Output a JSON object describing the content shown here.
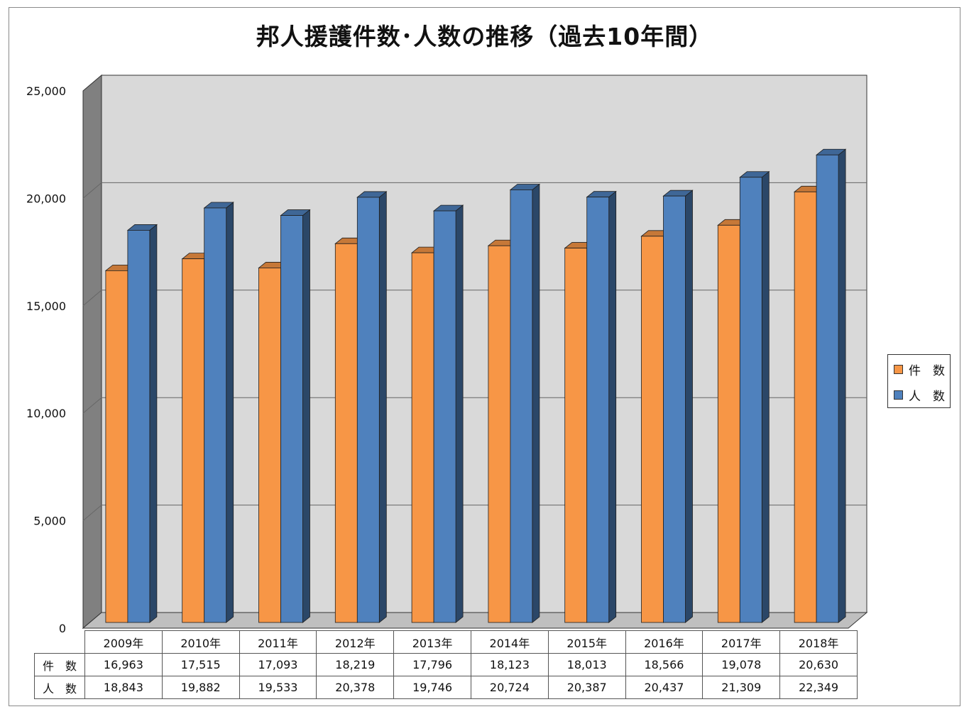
{
  "title": "邦人援護件数･人数の推移（過去10年間）",
  "colors": {
    "series1": "#f79646",
    "series2": "#4f81bd",
    "plot_back": "#d9d9d9",
    "plot_side": "#808080"
  },
  "chart_data": {
    "type": "bar",
    "categories": [
      "2009年",
      "2010年",
      "2011年",
      "2012年",
      "2013年",
      "2014年",
      "2015年",
      "2016年",
      "2017年",
      "2018年"
    ],
    "series": [
      {
        "name": "件　数",
        "values": [
          16963,
          17515,
          17093,
          18219,
          17796,
          18123,
          18013,
          18566,
          19078,
          20630
        ]
      },
      {
        "name": "人　数",
        "values": [
          18843,
          19882,
          19533,
          20378,
          19746,
          20724,
          20387,
          20437,
          21309,
          22349
        ]
      }
    ],
    "ylim": [
      0,
      25000
    ],
    "yticks": [
      "0",
      "5,000",
      "10,000",
      "15,000",
      "20,000",
      "25,000"
    ],
    "grid": true,
    "legend": "right",
    "table": {
      "row_labels": [
        "件　数",
        "人　数"
      ],
      "rows": [
        [
          "16,963",
          "17,515",
          "17,093",
          "18,219",
          "17,796",
          "18,123",
          "18,013",
          "18,566",
          "19,078",
          "20,630"
        ],
        [
          "18,843",
          "19,882",
          "19,533",
          "20,378",
          "19,746",
          "20,724",
          "20,387",
          "20,437",
          "21,309",
          "22,349"
        ]
      ]
    }
  }
}
